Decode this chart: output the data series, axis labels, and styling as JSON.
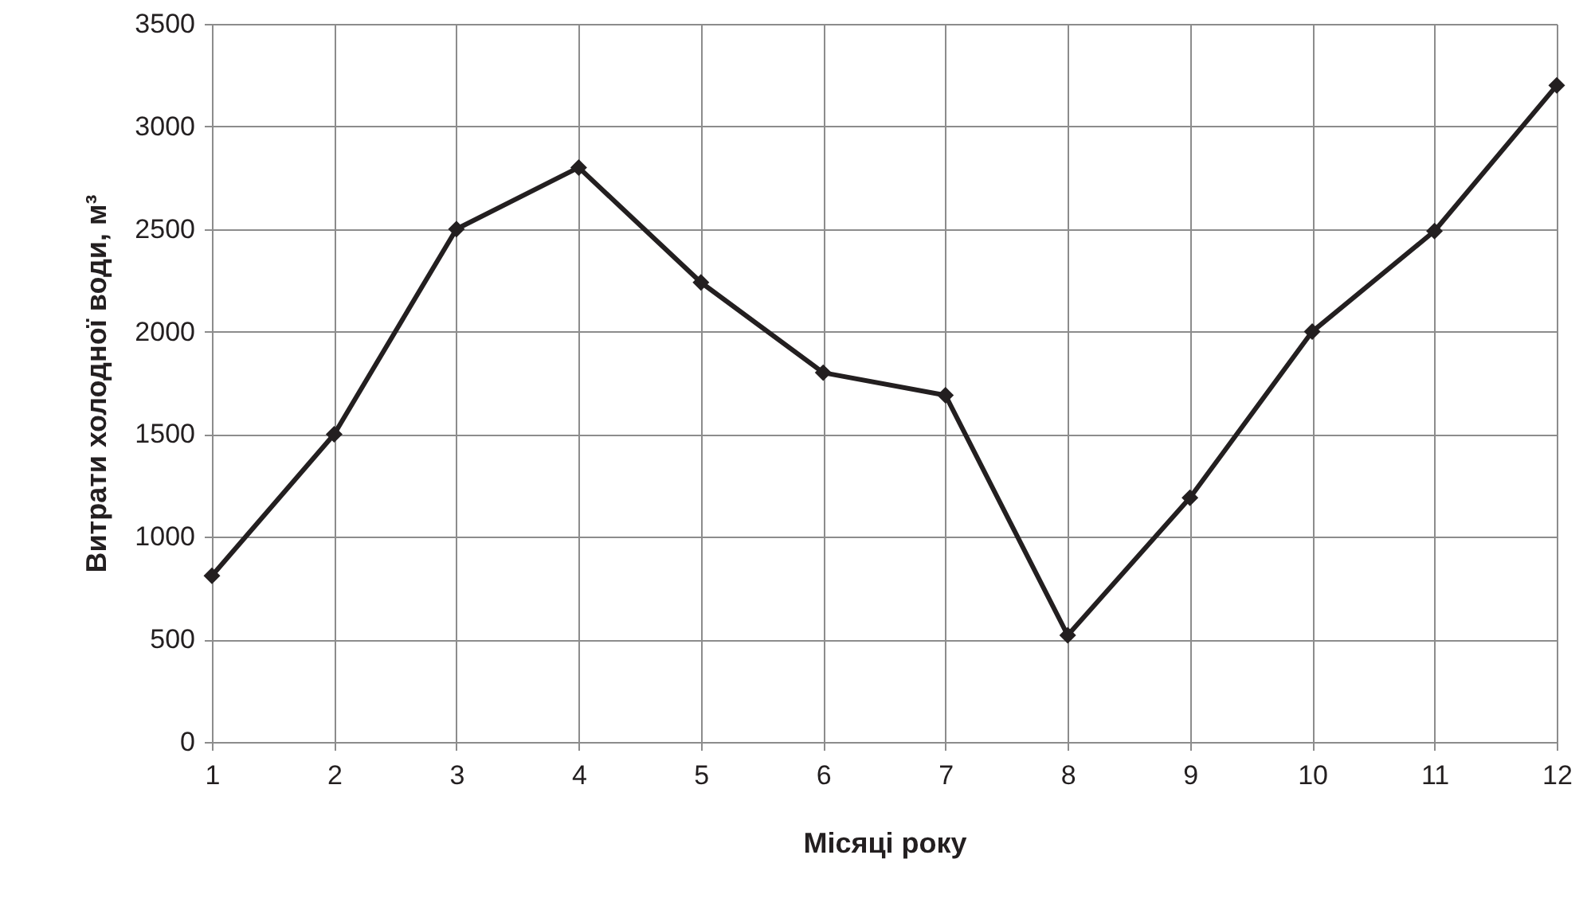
{
  "chart_data": {
    "type": "line",
    "xlabel": "Місяці року",
    "ylabel": "Витрати холодної води, м³",
    "x": [
      1,
      2,
      3,
      4,
      5,
      6,
      7,
      8,
      9,
      10,
      11,
      12
    ],
    "series": [
      {
        "color": "#231f20",
        "values": [
          810,
          1500,
          2500,
          2800,
          2240,
          1800,
          1690,
          520,
          1190,
          2000,
          2490,
          3200
        ]
      }
    ],
    "xlim": [
      1,
      12
    ],
    "xticks": [
      1,
      2,
      3,
      4,
      5,
      6,
      7,
      8,
      9,
      10,
      11,
      12
    ],
    "ylim": [
      0,
      3500
    ],
    "yticks": [
      0,
      500,
      1000,
      1500,
      2000,
      2500,
      3000,
      3500
    ],
    "grid": true,
    "marker": "diamond",
    "line_style": "solid"
  }
}
